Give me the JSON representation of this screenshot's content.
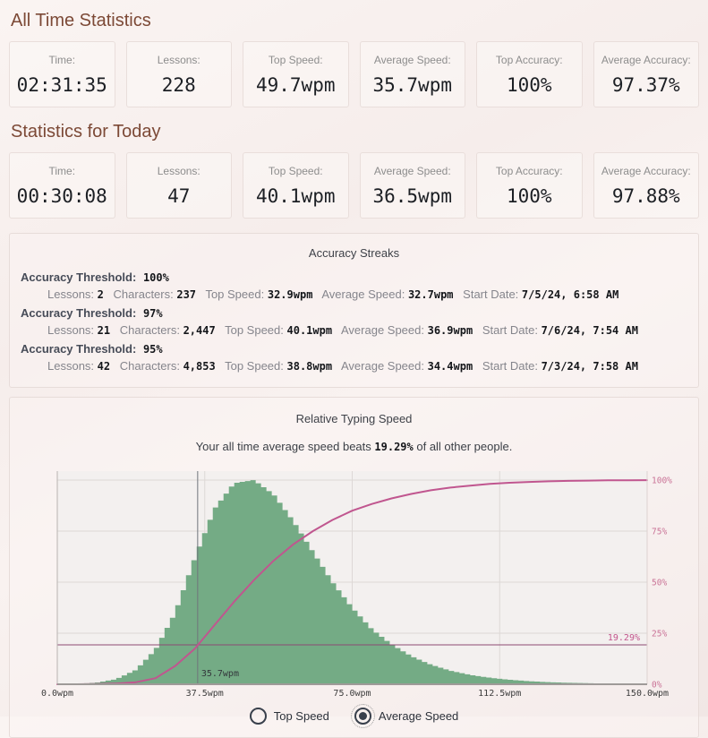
{
  "all_time": {
    "title": "All Time Statistics",
    "cards": [
      {
        "label": "Time:",
        "value": "02:31:35"
      },
      {
        "label": "Lessons:",
        "value": "228"
      },
      {
        "label": "Top Speed:",
        "value": "49.7wpm"
      },
      {
        "label": "Average Speed:",
        "value": "35.7wpm"
      },
      {
        "label": "Top Accuracy:",
        "value": "100%"
      },
      {
        "label": "Average Accuracy:",
        "value": "97.37%"
      }
    ]
  },
  "today": {
    "title": "Statistics for Today",
    "cards": [
      {
        "label": "Time:",
        "value": "00:30:08"
      },
      {
        "label": "Lessons:",
        "value": "47"
      },
      {
        "label": "Top Speed:",
        "value": "40.1wpm"
      },
      {
        "label": "Average Speed:",
        "value": "36.5wpm"
      },
      {
        "label": "Top Accuracy:",
        "value": "100%"
      },
      {
        "label": "Average Accuracy:",
        "value": "97.88%"
      }
    ]
  },
  "streaks": {
    "title": "Accuracy Streaks",
    "threshold_label": "Accuracy Threshold:",
    "items": [
      {
        "threshold": "100%",
        "fields": [
          {
            "label": "Lessons:",
            "value": "2"
          },
          {
            "label": "Characters:",
            "value": "237"
          },
          {
            "label": "Top Speed:",
            "value": "32.9wpm"
          },
          {
            "label": "Average Speed:",
            "value": "32.7wpm"
          },
          {
            "label": "Start Date:",
            "value": "7/5/24, 6:58 AM"
          }
        ]
      },
      {
        "threshold": "97%",
        "fields": [
          {
            "label": "Lessons:",
            "value": "21"
          },
          {
            "label": "Characters:",
            "value": "2,447"
          },
          {
            "label": "Top Speed:",
            "value": "40.1wpm"
          },
          {
            "label": "Average Speed:",
            "value": "36.9wpm"
          },
          {
            "label": "Start Date:",
            "value": "7/6/24, 7:54 AM"
          }
        ]
      },
      {
        "threshold": "95%",
        "fields": [
          {
            "label": "Lessons:",
            "value": "42"
          },
          {
            "label": "Characters:",
            "value": "4,853"
          },
          {
            "label": "Top Speed:",
            "value": "38.8wpm"
          },
          {
            "label": "Average Speed:",
            "value": "34.4wpm"
          },
          {
            "label": "Start Date:",
            "value": "7/3/24, 7:58 AM"
          }
        ]
      }
    ]
  },
  "chart": {
    "title": "Relative Typing Speed",
    "subtitle_prefix": "Your all time average speed beats ",
    "subtitle_value": "19.29%",
    "subtitle_suffix": " of all other people.",
    "controls": [
      {
        "label": "Top Speed",
        "selected": false
      },
      {
        "label": "Average Speed",
        "selected": true
      }
    ]
  },
  "chart_data": {
    "type": "area",
    "title": "Relative Typing Speed",
    "annotation": "Your all time average speed beats 19.29% of all other people.",
    "x_unit": "wpm",
    "xlim": [
      0,
      150
    ],
    "ylim_right_percent": [
      0,
      100
    ],
    "grid": true,
    "x_tick_values": [
      0,
      37.5,
      75,
      112.5,
      150
    ],
    "x_tick_labels": [
      "0.0wpm",
      "37.5wpm",
      "75.0wpm",
      "112.5wpm",
      "150.0wpm"
    ],
    "y_right_tick_values": [
      0,
      25,
      50,
      75,
      100
    ],
    "y_right_tick_labels": [
      "0%",
      "25%",
      "50%",
      "75%",
      "100%"
    ],
    "marker": {
      "x_value": 35.7,
      "x_label": "35.7wpm",
      "percentile_value": 19.29,
      "percentile_label": "19.29%"
    },
    "x": [
      0,
      5,
      10,
      15,
      20,
      25,
      30,
      35,
      40,
      45,
      50,
      55,
      60,
      65,
      70,
      75,
      80,
      85,
      90,
      95,
      100,
      105,
      110,
      115,
      120,
      125,
      130,
      135,
      140,
      145,
      150
    ],
    "series": [
      {
        "name": "speed-distribution-histogram",
        "style": "histogram",
        "color": "#74ab85",
        "values_normalized": [
          0,
          0.002,
          0.008,
          0.025,
          0.07,
          0.17,
          0.35,
          0.62,
          0.86,
          0.985,
          1.0,
          0.93,
          0.8,
          0.65,
          0.5,
          0.375,
          0.27,
          0.195,
          0.138,
          0.096,
          0.066,
          0.046,
          0.032,
          0.022,
          0.015,
          0.01,
          0.007,
          0.005,
          0.0035,
          0.0025,
          0.0018
        ]
      },
      {
        "name": "cumulative-percentile-line",
        "style": "line",
        "color": "#c0568f",
        "values_percent": [
          0,
          0.02,
          0.1,
          0.35,
          1.0,
          3.0,
          9.0,
          17.5,
          29.0,
          40.5,
          51.0,
          60.5,
          68.5,
          75.0,
          80.5,
          85.0,
          88.3,
          91.0,
          93.2,
          95.0,
          96.3,
          97.3,
          98.1,
          98.7,
          99.1,
          99.4,
          99.6,
          99.75,
          99.85,
          99.92,
          99.97
        ]
      }
    ],
    "colors": {
      "plot_bg": "#f3f0ef",
      "grid": "#ddd8d6",
      "x_axis": "#9e9a98",
      "left_axis": "#b9b3b1",
      "right_axis": "#ddd2d0",
      "marker_line": "#70757c",
      "percentile_line": "#8d4a73",
      "x_tick_text": "#3c3c3c",
      "right_tick_text": "#ca7397",
      "marker_text": "#33363b",
      "percentile_text": "#c2548c"
    }
  }
}
